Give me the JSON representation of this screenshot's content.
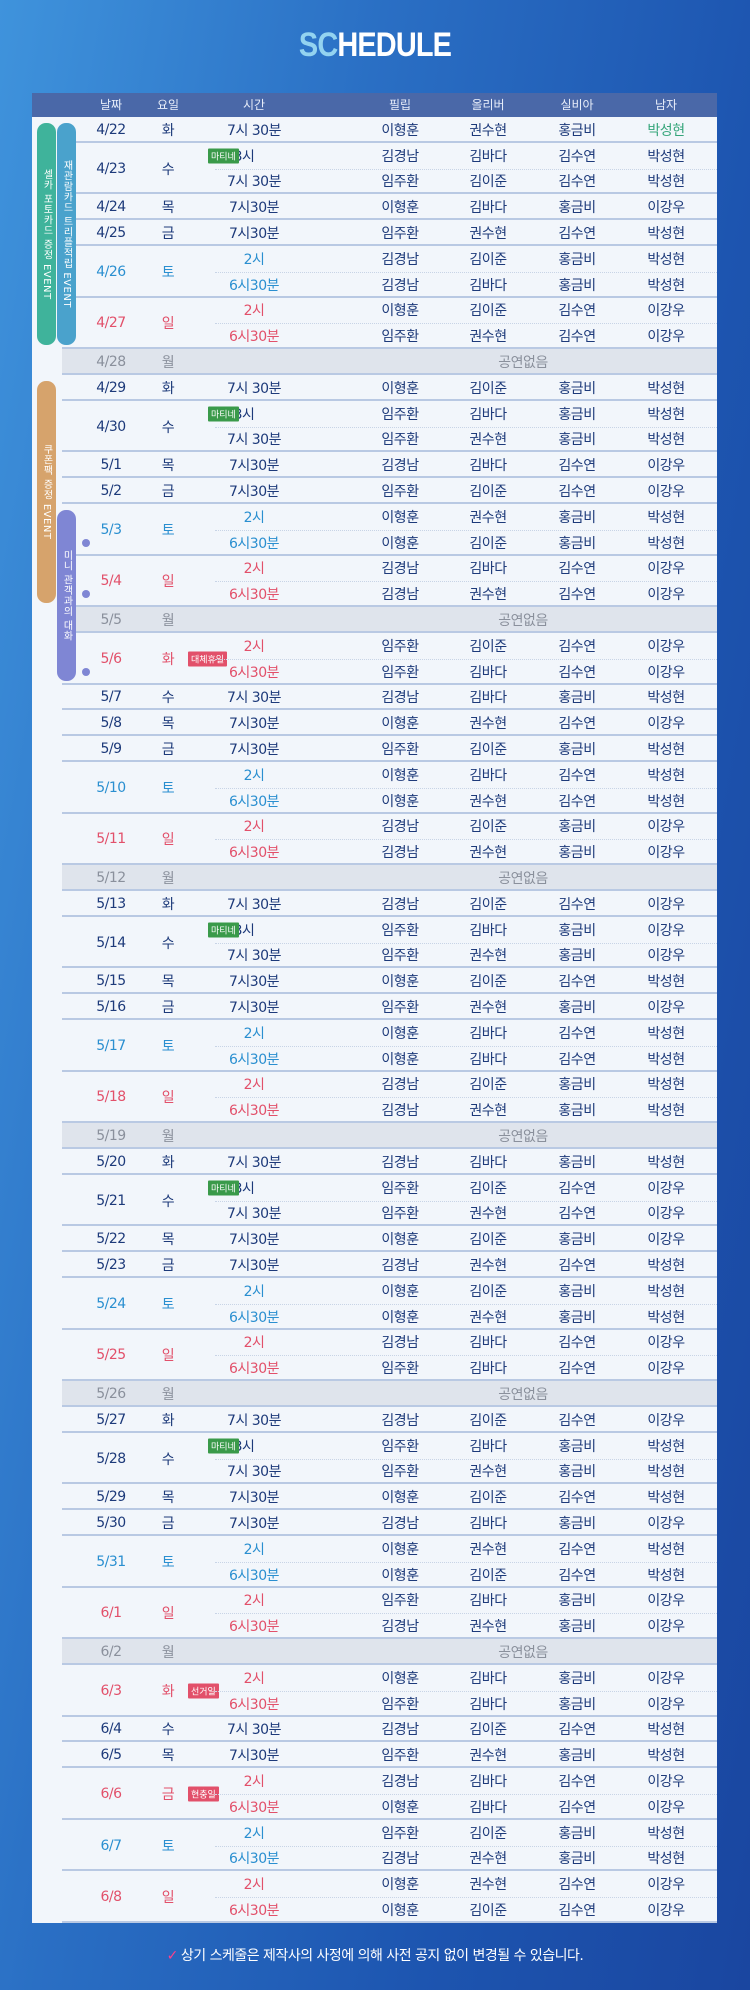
{
  "title": {
    "highlight": "SC",
    "rest": "HEDULE"
  },
  "headers": [
    "날짜",
    "요일",
    "시간",
    "필립",
    "올리버",
    "실비아",
    "남자"
  ],
  "colors": {
    "navy": "#1d3a7a",
    "saturday": "#2a8fd0",
    "sunday": "#e2506a",
    "matinee_badge": "#3a9a4a",
    "holiday_badge": "#e2506a",
    "header": "#4a68a8"
  },
  "events": [
    {
      "label": "셀카 포토카드 증정 EVENT",
      "color": "#3fb39b"
    },
    {
      "label": "재관람카드 트리플적립 EVENT",
      "color": "#4aa2cc"
    },
    {
      "label": "쿠폰팩 증정 EVENT",
      "color": "#d6a36c"
    },
    {
      "label": "미니 관객과의 대화",
      "color": "#7f86d4"
    }
  ],
  "off_label": "공연없음",
  "days": [
    {
      "date": "4/22",
      "day": "화",
      "tone": "normal",
      "shows": [
        {
          "time": "7시 30분",
          "cast": [
            "이형훈",
            "권수현",
            "홍금비",
            "박성현"
          ],
          "highlight": 3
        }
      ]
    },
    {
      "date": "4/23",
      "day": "수",
      "tone": "normal",
      "shows": [
        {
          "time": "3시",
          "badge": "마티네",
          "cast": [
            "김경남",
            "김바다",
            "김수연",
            "박성현"
          ]
        },
        {
          "time": "7시 30분",
          "cast": [
            "임주환",
            "김이준",
            "김수연",
            "박성현"
          ]
        }
      ]
    },
    {
      "date": "4/24",
      "day": "목",
      "tone": "normal",
      "shows": [
        {
          "time": "7시30분",
          "cast": [
            "이형훈",
            "김바다",
            "홍금비",
            "이강우"
          ]
        }
      ]
    },
    {
      "date": "4/25",
      "day": "금",
      "tone": "normal",
      "shows": [
        {
          "time": "7시30분",
          "cast": [
            "임주환",
            "권수현",
            "김수연",
            "박성현"
          ]
        }
      ]
    },
    {
      "date": "4/26",
      "day": "토",
      "tone": "sat",
      "shows": [
        {
          "time": "2시",
          "cast": [
            "김경남",
            "김이준",
            "홍금비",
            "박성현"
          ]
        },
        {
          "time": "6시30분",
          "cast": [
            "김경남",
            "김바다",
            "홍금비",
            "박성현"
          ]
        }
      ]
    },
    {
      "date": "4/27",
      "day": "일",
      "tone": "sun",
      "shows": [
        {
          "time": "2시",
          "cast": [
            "이형훈",
            "김이준",
            "김수연",
            "이강우"
          ]
        },
        {
          "time": "6시30분",
          "cast": [
            "임주환",
            "권수현",
            "김수연",
            "이강우"
          ]
        }
      ]
    },
    {
      "date": "4/28",
      "day": "월",
      "tone": "off",
      "shows": []
    },
    {
      "date": "4/29",
      "day": "화",
      "tone": "normal",
      "shows": [
        {
          "time": "7시 30분",
          "cast": [
            "이형훈",
            "김이준",
            "홍금비",
            "박성현"
          ]
        }
      ]
    },
    {
      "date": "4/30",
      "day": "수",
      "tone": "normal",
      "shows": [
        {
          "time": "3시",
          "badge": "마티네",
          "cast": [
            "임주환",
            "김바다",
            "홍금비",
            "박성현"
          ]
        },
        {
          "time": "7시 30분",
          "cast": [
            "임주환",
            "권수현",
            "홍금비",
            "박성현"
          ]
        }
      ]
    },
    {
      "date": "5/1",
      "day": "목",
      "tone": "normal",
      "shows": [
        {
          "time": "7시30분",
          "cast": [
            "김경남",
            "김바다",
            "김수연",
            "이강우"
          ]
        }
      ]
    },
    {
      "date": "5/2",
      "day": "금",
      "tone": "normal",
      "shows": [
        {
          "time": "7시30분",
          "cast": [
            "임주환",
            "김이준",
            "김수연",
            "이강우"
          ]
        }
      ]
    },
    {
      "date": "5/3",
      "day": "토",
      "tone": "sat",
      "dot": true,
      "shows": [
        {
          "time": "2시",
          "cast": [
            "이형훈",
            "권수현",
            "홍금비",
            "박성현"
          ]
        },
        {
          "time": "6시30분",
          "cast": [
            "이형훈",
            "김이준",
            "홍금비",
            "박성현"
          ]
        }
      ]
    },
    {
      "date": "5/4",
      "day": "일",
      "tone": "sun",
      "dot": true,
      "shows": [
        {
          "time": "2시",
          "cast": [
            "김경남",
            "김바다",
            "김수연",
            "이강우"
          ]
        },
        {
          "time": "6시30분",
          "cast": [
            "김경남",
            "권수현",
            "김수연",
            "이강우"
          ]
        }
      ]
    },
    {
      "date": "5/5",
      "day": "월",
      "tone": "off",
      "shows": []
    },
    {
      "date": "5/6",
      "day": "화",
      "tone": "sun",
      "holiday": "대체휴일",
      "dot": true,
      "shows": [
        {
          "time": "2시",
          "cast": [
            "임주환",
            "김이준",
            "김수연",
            "이강우"
          ]
        },
        {
          "time": "6시30분",
          "cast": [
            "임주환",
            "김바다",
            "김수연",
            "이강우"
          ]
        }
      ]
    },
    {
      "date": "5/7",
      "day": "수",
      "tone": "normal",
      "shows": [
        {
          "time": "7시 30분",
          "cast": [
            "김경남",
            "김바다",
            "홍금비",
            "박성현"
          ]
        }
      ]
    },
    {
      "date": "5/8",
      "day": "목",
      "tone": "normal",
      "shows": [
        {
          "time": "7시30분",
          "cast": [
            "이형훈",
            "권수현",
            "김수연",
            "이강우"
          ]
        }
      ]
    },
    {
      "date": "5/9",
      "day": "금",
      "tone": "normal",
      "shows": [
        {
          "time": "7시30분",
          "cast": [
            "임주환",
            "김이준",
            "홍금비",
            "박성현"
          ]
        }
      ]
    },
    {
      "date": "5/10",
      "day": "토",
      "tone": "sat",
      "shows": [
        {
          "time": "2시",
          "cast": [
            "이형훈",
            "김바다",
            "김수연",
            "박성현"
          ]
        },
        {
          "time": "6시30분",
          "cast": [
            "이형훈",
            "권수현",
            "김수연",
            "박성현"
          ]
        }
      ]
    },
    {
      "date": "5/11",
      "day": "일",
      "tone": "sun",
      "shows": [
        {
          "time": "2시",
          "cast": [
            "김경남",
            "김이준",
            "홍금비",
            "이강우"
          ]
        },
        {
          "time": "6시30분",
          "cast": [
            "김경남",
            "권수현",
            "홍금비",
            "이강우"
          ]
        }
      ]
    },
    {
      "date": "5/12",
      "day": "월",
      "tone": "off",
      "shows": []
    },
    {
      "date": "5/13",
      "day": "화",
      "tone": "normal",
      "shows": [
        {
          "time": "7시 30분",
          "cast": [
            "김경남",
            "김이준",
            "김수연",
            "이강우"
          ]
        }
      ]
    },
    {
      "date": "5/14",
      "day": "수",
      "tone": "normal",
      "shows": [
        {
          "time": "3시",
          "badge": "마티네",
          "cast": [
            "임주환",
            "김바다",
            "홍금비",
            "이강우"
          ]
        },
        {
          "time": "7시 30분",
          "cast": [
            "임주환",
            "권수현",
            "홍금비",
            "이강우"
          ]
        }
      ]
    },
    {
      "date": "5/15",
      "day": "목",
      "tone": "normal",
      "shows": [
        {
          "time": "7시30분",
          "cast": [
            "이형훈",
            "김이준",
            "김수연",
            "박성현"
          ]
        }
      ]
    },
    {
      "date": "5/16",
      "day": "금",
      "tone": "normal",
      "shows": [
        {
          "time": "7시30분",
          "cast": [
            "임주환",
            "권수현",
            "홍금비",
            "이강우"
          ]
        }
      ]
    },
    {
      "date": "5/17",
      "day": "토",
      "tone": "sat",
      "shows": [
        {
          "time": "2시",
          "cast": [
            "이형훈",
            "김바다",
            "김수연",
            "박성현"
          ]
        },
        {
          "time": "6시30분",
          "cast": [
            "이형훈",
            "김바다",
            "김수연",
            "박성현"
          ]
        }
      ]
    },
    {
      "date": "5/18",
      "day": "일",
      "tone": "sun",
      "shows": [
        {
          "time": "2시",
          "cast": [
            "김경남",
            "김이준",
            "홍금비",
            "박성현"
          ]
        },
        {
          "time": "6시30분",
          "cast": [
            "김경남",
            "권수현",
            "홍금비",
            "박성현"
          ]
        }
      ]
    },
    {
      "date": "5/19",
      "day": "월",
      "tone": "off",
      "shows": []
    },
    {
      "date": "5/20",
      "day": "화",
      "tone": "normal",
      "shows": [
        {
          "time": "7시 30분",
          "cast": [
            "김경남",
            "김바다",
            "홍금비",
            "박성현"
          ]
        }
      ]
    },
    {
      "date": "5/21",
      "day": "수",
      "tone": "normal",
      "shows": [
        {
          "time": "3시",
          "badge": "마티네",
          "cast": [
            "임주환",
            "김이준",
            "김수연",
            "이강우"
          ]
        },
        {
          "time": "7시 30분",
          "cast": [
            "임주환",
            "권수현",
            "김수연",
            "이강우"
          ]
        }
      ]
    },
    {
      "date": "5/22",
      "day": "목",
      "tone": "normal",
      "shows": [
        {
          "time": "7시30분",
          "cast": [
            "이형훈",
            "김이준",
            "홍금비",
            "이강우"
          ]
        }
      ]
    },
    {
      "date": "5/23",
      "day": "금",
      "tone": "normal",
      "shows": [
        {
          "time": "7시30분",
          "cast": [
            "김경남",
            "권수현",
            "김수연",
            "박성현"
          ]
        }
      ]
    },
    {
      "date": "5/24",
      "day": "토",
      "tone": "sat",
      "shows": [
        {
          "time": "2시",
          "cast": [
            "이형훈",
            "김이준",
            "홍금비",
            "박성현"
          ]
        },
        {
          "time": "6시30분",
          "cast": [
            "이형훈",
            "권수현",
            "홍금비",
            "박성현"
          ]
        }
      ]
    },
    {
      "date": "5/25",
      "day": "일",
      "tone": "sun",
      "shows": [
        {
          "time": "2시",
          "cast": [
            "김경남",
            "김바다",
            "김수연",
            "이강우"
          ]
        },
        {
          "time": "6시30분",
          "cast": [
            "임주환",
            "김바다",
            "김수연",
            "이강우"
          ]
        }
      ]
    },
    {
      "date": "5/26",
      "day": "월",
      "tone": "off",
      "shows": []
    },
    {
      "date": "5/27",
      "day": "화",
      "tone": "normal",
      "shows": [
        {
          "time": "7시 30분",
          "cast": [
            "김경남",
            "김이준",
            "김수연",
            "이강우"
          ]
        }
      ]
    },
    {
      "date": "5/28",
      "day": "수",
      "tone": "normal",
      "shows": [
        {
          "time": "3시",
          "badge": "마티네",
          "cast": [
            "임주환",
            "김바다",
            "홍금비",
            "박성현"
          ]
        },
        {
          "time": "7시 30분",
          "cast": [
            "임주환",
            "권수현",
            "홍금비",
            "박성현"
          ]
        }
      ]
    },
    {
      "date": "5/29",
      "day": "목",
      "tone": "normal",
      "shows": [
        {
          "time": "7시30분",
          "cast": [
            "이형훈",
            "김이준",
            "김수연",
            "박성현"
          ]
        }
      ]
    },
    {
      "date": "5/30",
      "day": "금",
      "tone": "normal",
      "shows": [
        {
          "time": "7시30분",
          "cast": [
            "김경남",
            "김바다",
            "홍금비",
            "이강우"
          ]
        }
      ]
    },
    {
      "date": "5/31",
      "day": "토",
      "tone": "sat",
      "shows": [
        {
          "time": "2시",
          "cast": [
            "이형훈",
            "권수현",
            "김수연",
            "박성현"
          ]
        },
        {
          "time": "6시30분",
          "cast": [
            "이형훈",
            "김이준",
            "김수연",
            "박성현"
          ]
        }
      ]
    },
    {
      "date": "6/1",
      "day": "일",
      "tone": "sun",
      "shows": [
        {
          "time": "2시",
          "cast": [
            "임주환",
            "김바다",
            "홍금비",
            "이강우"
          ]
        },
        {
          "time": "6시30분",
          "cast": [
            "김경남",
            "권수현",
            "홍금비",
            "이강우"
          ]
        }
      ]
    },
    {
      "date": "6/2",
      "day": "월",
      "tone": "off",
      "shows": []
    },
    {
      "date": "6/3",
      "day": "화",
      "tone": "sun",
      "holiday": "선거일",
      "shows": [
        {
          "time": "2시",
          "cast": [
            "이형훈",
            "김바다",
            "홍금비",
            "이강우"
          ]
        },
        {
          "time": "6시30분",
          "cast": [
            "임주환",
            "김바다",
            "홍금비",
            "이강우"
          ]
        }
      ]
    },
    {
      "date": "6/4",
      "day": "수",
      "tone": "normal",
      "shows": [
        {
          "time": "7시 30분",
          "cast": [
            "김경남",
            "김이준",
            "김수연",
            "박성현"
          ]
        }
      ]
    },
    {
      "date": "6/5",
      "day": "목",
      "tone": "normal",
      "shows": [
        {
          "time": "7시30분",
          "cast": [
            "임주환",
            "권수현",
            "홍금비",
            "박성현"
          ]
        }
      ]
    },
    {
      "date": "6/6",
      "day": "금",
      "tone": "sun",
      "holiday": "현충일",
      "shows": [
        {
          "time": "2시",
          "cast": [
            "김경남",
            "김바다",
            "김수연",
            "이강우"
          ]
        },
        {
          "time": "6시30분",
          "cast": [
            "이형훈",
            "김바다",
            "김수연",
            "이강우"
          ]
        }
      ]
    },
    {
      "date": "6/7",
      "day": "토",
      "tone": "sat",
      "shows": [
        {
          "time": "2시",
          "cast": [
            "임주환",
            "김이준",
            "홍금비",
            "박성현"
          ]
        },
        {
          "time": "6시30분",
          "cast": [
            "김경남",
            "권수현",
            "홍금비",
            "박성현"
          ]
        }
      ]
    },
    {
      "date": "6/8",
      "day": "일",
      "tone": "sun",
      "shows": [
        {
          "time": "2시",
          "cast": [
            "이형훈",
            "권수현",
            "김수연",
            "이강우"
          ]
        },
        {
          "time": "6시30분",
          "cast": [
            "이형훈",
            "김이준",
            "김수연",
            "이강우"
          ]
        }
      ]
    }
  ],
  "note": {
    "check": "✓",
    "text": "상기 스케줄은 제작사의 사정에 의해 사전 공지 없이 변경될 수 있습니다."
  }
}
